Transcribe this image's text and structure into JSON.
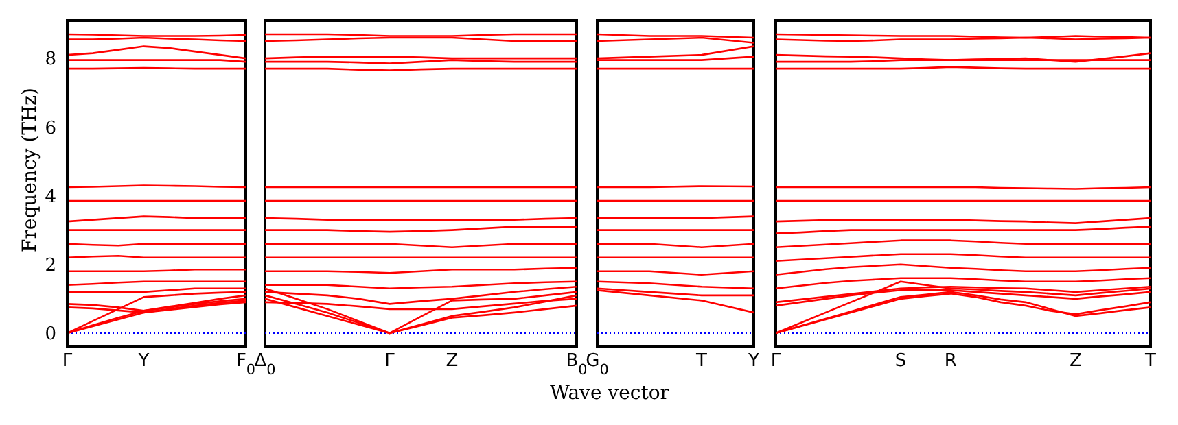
{
  "chart_data": [
    {
      "type": "line",
      "ylabel": "Frequency (THz)",
      "categories": [
        "Γ",
        null,
        null,
        "Y",
        null,
        null,
        null,
        "F$_{0}$"
      ],
      "ylim": [
        -0.4,
        9.1
      ],
      "yticks": [
        0,
        2,
        4,
        6,
        8
      ],
      "ref_lines": [
        {
          "axis": "y",
          "value": 0,
          "color": "#0000ff",
          "line_style": "dotted"
        }
      ],
      "series": [
        {
          "color": "#ff0000",
          "values": [
            8.7,
            8.69,
            8.67,
            8.65,
            8.65,
            8.65,
            8.66,
            8.68
          ]
        },
        {
          "color": "#ff0000",
          "values": [
            8.55,
            8.55,
            8.57,
            8.6,
            8.57,
            8.55,
            8.52,
            8.5
          ]
        },
        {
          "color": "#ff0000",
          "values": [
            8.1,
            8.15,
            8.25,
            8.35,
            8.3,
            8.2,
            8.1,
            8.0
          ]
        },
        {
          "color": "#ff0000",
          "values": [
            7.95,
            7.95,
            7.95,
            7.95,
            7.95,
            7.95,
            7.95,
            7.9
          ]
        },
        {
          "color": "#ff0000",
          "values": [
            7.7,
            7.7,
            7.71,
            7.72,
            7.71,
            7.7,
            7.7,
            7.7
          ]
        },
        {
          "color": "#ff0000",
          "values": [
            4.25,
            4.26,
            4.28,
            4.3,
            4.29,
            4.28,
            4.26,
            4.25
          ]
        },
        {
          "color": "#ff0000",
          "values": [
            3.85,
            3.85,
            3.85,
            3.85,
            3.85,
            3.85,
            3.85,
            3.85
          ]
        },
        {
          "color": "#ff0000",
          "values": [
            3.25,
            3.3,
            3.35,
            3.4,
            3.38,
            3.35,
            3.35,
            3.35
          ]
        },
        {
          "color": "#ff0000",
          "values": [
            3.0,
            3.0,
            3.0,
            3.0,
            3.0,
            3.0,
            3.0,
            3.0
          ]
        },
        {
          "color": "#ff0000",
          "values": [
            2.6,
            2.57,
            2.55,
            2.6,
            2.6,
            2.6,
            2.6,
            2.6
          ]
        },
        {
          "color": "#ff0000",
          "values": [
            2.2,
            2.23,
            2.25,
            2.2,
            2.2,
            2.2,
            2.2,
            2.2
          ]
        },
        {
          "color": "#ff0000",
          "values": [
            1.8,
            1.8,
            1.8,
            1.8,
            1.82,
            1.85,
            1.85,
            1.85
          ]
        },
        {
          "color": "#ff0000",
          "values": [
            1.4,
            1.43,
            1.47,
            1.5,
            1.5,
            1.5,
            1.5,
            1.5
          ]
        },
        {
          "color": "#ff0000",
          "values": [
            1.2,
            1.2,
            1.2,
            1.2,
            1.25,
            1.3,
            1.3,
            1.3
          ]
        },
        {
          "color": "#ff0000",
          "values": [
            0.85,
            0.82,
            0.75,
            0.65,
            0.75,
            0.85,
            0.93,
            1.0
          ]
        },
        {
          "color": "#ff0000",
          "values": [
            0.75,
            0.72,
            0.66,
            0.6,
            0.7,
            0.8,
            0.88,
            0.95
          ]
        },
        {
          "color": "#ff0000",
          "values": [
            0,
            0.23,
            0.45,
            0.65,
            0.77,
            0.88,
            1.0,
            1.1
          ]
        },
        {
          "color": "#ff0000",
          "values": [
            0,
            0.35,
            0.7,
            1.05,
            1.1,
            1.15,
            1.18,
            1.2
          ]
        },
        {
          "color": "#ff0000",
          "values": [
            0,
            0.2,
            0.4,
            0.6,
            0.68,
            0.76,
            0.84,
            0.9
          ]
        }
      ]
    },
    {
      "type": "line",
      "categories": [
        "Δ$_{0}$",
        null,
        null,
        null,
        "Γ",
        null,
        "Z",
        null,
        null,
        null,
        "B$_{0}$"
      ],
      "ylim": [
        -0.4,
        9.1
      ],
      "yticks": [
        0,
        2,
        4,
        6,
        8
      ],
      "tick_labels": "x",
      "ref_lines": [
        {
          "axis": "y",
          "value": 0,
          "color": "#0000ff",
          "line_style": "dotted"
        }
      ],
      "series": [
        {
          "color": "#ff0000",
          "values": [
            8.7,
            8.7,
            8.7,
            8.68,
            8.65,
            8.65,
            8.65,
            8.68,
            8.7,
            8.7,
            8.7
          ]
        },
        {
          "color": "#ff0000",
          "values": [
            8.5,
            8.52,
            8.55,
            8.58,
            8.6,
            8.6,
            8.6,
            8.55,
            8.5,
            8.5,
            8.5
          ]
        },
        {
          "color": "#ff0000",
          "values": [
            8.0,
            8.03,
            8.05,
            8.05,
            8.05,
            8.03,
            8.0,
            8.0,
            8.0,
            8.0,
            8.0
          ]
        },
        {
          "color": "#ff0000",
          "values": [
            7.9,
            7.9,
            7.9,
            7.88,
            7.85,
            7.9,
            7.95,
            7.92,
            7.9,
            7.9,
            7.9
          ]
        },
        {
          "color": "#ff0000",
          "values": [
            7.7,
            7.7,
            7.7,
            7.67,
            7.65,
            7.68,
            7.7,
            7.7,
            7.7,
            7.7,
            7.7
          ]
        },
        {
          "color": "#ff0000",
          "values": [
            4.25,
            4.25,
            4.25,
            4.25,
            4.25,
            4.25,
            4.25,
            4.25,
            4.25,
            4.25,
            4.25
          ]
        },
        {
          "color": "#ff0000",
          "values": [
            3.85,
            3.85,
            3.85,
            3.85,
            3.85,
            3.85,
            3.85,
            3.85,
            3.85,
            3.85,
            3.85
          ]
        },
        {
          "color": "#ff0000",
          "values": [
            3.35,
            3.33,
            3.3,
            3.3,
            3.3,
            3.3,
            3.3,
            3.3,
            3.3,
            3.33,
            3.35
          ]
        },
        {
          "color": "#ff0000",
          "values": [
            3.0,
            3.0,
            3.0,
            2.97,
            2.95,
            2.97,
            3.0,
            3.05,
            3.1,
            3.1,
            3.1
          ]
        },
        {
          "color": "#ff0000",
          "values": [
            2.6,
            2.6,
            2.6,
            2.6,
            2.6,
            2.55,
            2.5,
            2.55,
            2.6,
            2.6,
            2.6
          ]
        },
        {
          "color": "#ff0000",
          "values": [
            2.2,
            2.2,
            2.2,
            2.2,
            2.2,
            2.2,
            2.2,
            2.2,
            2.2,
            2.2,
            2.2
          ]
        },
        {
          "color": "#ff0000",
          "values": [
            1.8,
            1.8,
            1.8,
            1.78,
            1.75,
            1.8,
            1.85,
            1.85,
            1.85,
            1.88,
            1.9
          ]
        },
        {
          "color": "#ff0000",
          "values": [
            1.4,
            1.4,
            1.4,
            1.35,
            1.3,
            1.33,
            1.35,
            1.4,
            1.45,
            1.48,
            1.5
          ]
        },
        {
          "color": "#ff0000",
          "values": [
            1.2,
            1.15,
            1.1,
            1.0,
            0.85,
            0.93,
            1.0,
            1.1,
            1.2,
            1.28,
            1.35
          ]
        },
        {
          "color": "#ff0000",
          "values": [
            0.9,
            0.88,
            0.85,
            0.78,
            0.7,
            0.7,
            0.7,
            0.78,
            0.86,
            0.94,
            1.0
          ]
        },
        {
          "color": "#ff0000",
          "values": [
            1.0,
            0.75,
            0.5,
            0.25,
            0,
            0.25,
            0.5,
            0.62,
            0.75,
            0.92,
            1.1
          ]
        },
        {
          "color": "#ff0000",
          "values": [
            1.1,
            0.85,
            0.6,
            0.3,
            0,
            0.22,
            0.45,
            0.52,
            0.6,
            0.7,
            0.8
          ]
        },
        {
          "color": "#ff0000",
          "values": [
            1.3,
            1.0,
            0.7,
            0.35,
            0,
            0.48,
            0.95,
            0.98,
            1.0,
            1.1,
            1.2
          ]
        }
      ]
    },
    {
      "type": "line",
      "xlabel": "Wave vector",
      "categories": [
        "G$_{0}$",
        null,
        "T",
        "Y"
      ],
      "ylim": [
        -0.4,
        9.1
      ],
      "yticks": [
        0,
        2,
        4,
        6,
        8
      ],
      "tick_labels": "x",
      "ref_lines": [
        {
          "axis": "y",
          "value": 0,
          "color": "#0000ff",
          "line_style": "dotted"
        }
      ],
      "series": [
        {
          "color": "#ff0000",
          "values": [
            8.7,
            8.65,
            8.65,
            8.6
          ]
        },
        {
          "color": "#ff0000",
          "values": [
            8.5,
            8.55,
            8.6,
            8.45
          ]
        },
        {
          "color": "#ff0000",
          "values": [
            8.0,
            8.05,
            8.1,
            8.35
          ]
        },
        {
          "color": "#ff0000",
          "values": [
            7.95,
            7.95,
            7.95,
            8.05
          ]
        },
        {
          "color": "#ff0000",
          "values": [
            7.7,
            7.7,
            7.7,
            7.7
          ]
        },
        {
          "color": "#ff0000",
          "values": [
            4.25,
            4.25,
            4.28,
            4.27
          ]
        },
        {
          "color": "#ff0000",
          "values": [
            3.85,
            3.85,
            3.85,
            3.85
          ]
        },
        {
          "color": "#ff0000",
          "values": [
            3.35,
            3.35,
            3.35,
            3.4
          ]
        },
        {
          "color": "#ff0000",
          "values": [
            3.0,
            3.0,
            3.0,
            3.0
          ]
        },
        {
          "color": "#ff0000",
          "values": [
            2.6,
            2.6,
            2.5,
            2.6
          ]
        },
        {
          "color": "#ff0000",
          "values": [
            2.2,
            2.2,
            2.2,
            2.2
          ]
        },
        {
          "color": "#ff0000",
          "values": [
            1.8,
            1.8,
            1.7,
            1.8
          ]
        },
        {
          "color": "#ff0000",
          "values": [
            1.5,
            1.45,
            1.35,
            1.3
          ]
        },
        {
          "color": "#ff0000",
          "values": [
            1.3,
            1.2,
            1.1,
            1.1
          ]
        },
        {
          "color": "#ff0000",
          "values": [
            1.25,
            1.1,
            0.95,
            0.6
          ]
        }
      ]
    },
    {
      "type": "line",
      "categories": [
        "Γ",
        null,
        null,
        null,
        null,
        "S",
        null,
        "R",
        null,
        null,
        null,
        null,
        "Z",
        null,
        null,
        "T"
      ],
      "ylim": [
        -0.4,
        9.1
      ],
      "yticks": [
        0,
        2,
        4,
        6,
        8
      ],
      "tick_labels": "x",
      "ref_lines": [
        {
          "axis": "y",
          "value": 0,
          "color": "#0000ff",
          "line_style": "dotted"
        }
      ],
      "series": [
        {
          "color": "#ff0000",
          "values": [
            8.7,
            8.69,
            8.68,
            8.67,
            8.66,
            8.65,
            8.65,
            8.65,
            8.63,
            8.61,
            8.6,
            8.62,
            8.65,
            8.63,
            8.62,
            8.6
          ]
        },
        {
          "color": "#ff0000",
          "values": [
            8.55,
            8.53,
            8.51,
            8.5,
            8.52,
            8.55,
            8.55,
            8.55,
            8.57,
            8.58,
            8.6,
            8.58,
            8.55,
            8.57,
            8.58,
            8.6
          ]
        },
        {
          "color": "#ff0000",
          "values": [
            8.1,
            8.08,
            8.06,
            8.05,
            8.03,
            8.0,
            7.97,
            7.95,
            7.97,
            7.98,
            8.0,
            7.95,
            7.9,
            7.98,
            8.06,
            8.15
          ]
        },
        {
          "color": "#ff0000",
          "values": [
            7.9,
            7.9,
            7.9,
            7.9,
            7.92,
            7.95,
            7.95,
            7.95,
            7.95,
            7.95,
            7.95,
            7.95,
            7.95,
            7.95,
            7.95,
            7.95
          ]
        },
        {
          "color": "#ff0000",
          "values": [
            7.7,
            7.7,
            7.7,
            7.7,
            7.7,
            7.7,
            7.72,
            7.75,
            7.73,
            7.71,
            7.7,
            7.7,
            7.7,
            7.7,
            7.7,
            7.7
          ]
        },
        {
          "color": "#ff0000",
          "values": [
            4.25,
            4.25,
            4.25,
            4.25,
            4.25,
            4.25,
            4.25,
            4.25,
            4.25,
            4.23,
            4.22,
            4.21,
            4.2,
            4.22,
            4.23,
            4.25
          ]
        },
        {
          "color": "#ff0000",
          "values": [
            3.85,
            3.85,
            3.85,
            3.85,
            3.85,
            3.85,
            3.85,
            3.85,
            3.85,
            3.85,
            3.85,
            3.85,
            3.85,
            3.85,
            3.85,
            3.85
          ]
        },
        {
          "color": "#ff0000",
          "values": [
            3.25,
            3.27,
            3.29,
            3.3,
            3.3,
            3.3,
            3.3,
            3.3,
            3.28,
            3.26,
            3.25,
            3.22,
            3.2,
            3.25,
            3.3,
            3.35
          ]
        },
        {
          "color": "#ff0000",
          "values": [
            2.9,
            2.93,
            2.97,
            3.0,
            3.0,
            3.0,
            3.0,
            3.0,
            3.0,
            3.0,
            3.0,
            3.0,
            3.0,
            3.03,
            3.07,
            3.1
          ]
        },
        {
          "color": "#ff0000",
          "values": [
            2.5,
            2.54,
            2.58,
            2.62,
            2.66,
            2.7,
            2.7,
            2.7,
            2.67,
            2.63,
            2.6,
            2.6,
            2.6,
            2.6,
            2.6,
            2.6
          ]
        },
        {
          "color": "#ff0000",
          "values": [
            2.1,
            2.14,
            2.18,
            2.22,
            2.26,
            2.3,
            2.3,
            2.3,
            2.27,
            2.23,
            2.2,
            2.2,
            2.2,
            2.2,
            2.2,
            2.2
          ]
        },
        {
          "color": "#ff0000",
          "values": [
            1.7,
            1.78,
            1.86,
            1.92,
            1.96,
            2.0,
            1.95,
            1.9,
            1.87,
            1.83,
            1.8,
            1.8,
            1.8,
            1.83,
            1.87,
            1.9
          ]
        },
        {
          "color": "#ff0000",
          "values": [
            1.3,
            1.38,
            1.46,
            1.52,
            1.56,
            1.6,
            1.6,
            1.6,
            1.57,
            1.53,
            1.5,
            1.5,
            1.5,
            1.53,
            1.57,
            1.6
          ]
        },
        {
          "color": "#ff0000",
          "values": [
            0.9,
            0.98,
            1.06,
            1.14,
            1.22,
            1.3,
            1.33,
            1.35,
            1.33,
            1.31,
            1.3,
            1.25,
            1.2,
            1.25,
            1.3,
            1.35
          ]
        },
        {
          "color": "#ff0000",
          "values": [
            0.8,
            0.9,
            1.0,
            1.1,
            1.18,
            1.25,
            1.25,
            1.25,
            1.2,
            1.15,
            1.1,
            1.05,
            1.0,
            1.07,
            1.13,
            1.2
          ]
        },
        {
          "color": "#ff0000",
          "values": [
            0,
            0.2,
            0.4,
            0.6,
            0.8,
            1.0,
            1.08,
            1.15,
            1.05,
            0.9,
            0.8,
            0.65,
            0.55,
            0.67,
            0.78,
            0.9
          ]
        },
        {
          "color": "#ff0000",
          "values": [
            0,
            0.21,
            0.42,
            0.63,
            0.84,
            1.05,
            1.12,
            1.2,
            1.1,
            0.98,
            0.9,
            0.7,
            0.5,
            0.58,
            0.67,
            0.75
          ]
        },
        {
          "color": "#ff0000",
          "values": [
            0,
            0.3,
            0.6,
            0.9,
            1.2,
            1.5,
            1.4,
            1.3,
            1.27,
            1.23,
            1.2,
            1.15,
            1.1,
            1.17,
            1.23,
            1.3
          ]
        }
      ]
    }
  ]
}
